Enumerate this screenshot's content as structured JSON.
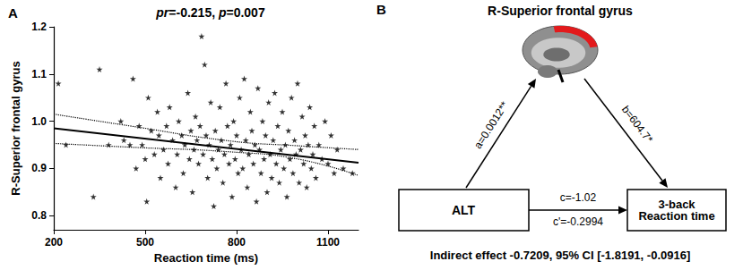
{
  "chart_data": {
    "type": "scatter",
    "panel_label": "A",
    "title": "pr=-0.215, p=0.007",
    "x_label": "Reaction time (ms)",
    "y_label": "R-Superior frontal gyrus",
    "xlim": [
      200,
      1200
    ],
    "xticks": [
      200,
      500,
      800,
      1100
    ],
    "ylim": [
      0.77,
      1.2
    ],
    "yticks": [
      0.8,
      0.9,
      {
        "value": 1.0,
        "label": "1.0"
      },
      1.1,
      1.2
    ],
    "grid": false,
    "series": [
      {
        "type": "scatter",
        "marker": "star",
        "color": "#000000",
        "x": [
          215,
          240,
          330,
          350,
          380,
          420,
          430,
          450,
          460,
          470,
          480,
          490,
          500,
          505,
          510,
          520,
          530,
          540,
          545,
          550,
          560,
          570,
          575,
          580,
          590,
          600,
          605,
          610,
          620,
          625,
          630,
          640,
          645,
          650,
          655,
          660,
          665,
          670,
          675,
          680,
          685,
          690,
          695,
          700,
          705,
          710,
          715,
          720,
          725,
          730,
          735,
          740,
          745,
          750,
          755,
          760,
          765,
          770,
          775,
          780,
          785,
          790,
          795,
          800,
          805,
          810,
          815,
          820,
          825,
          830,
          835,
          840,
          845,
          850,
          855,
          860,
          865,
          870,
          875,
          880,
          885,
          890,
          895,
          900,
          905,
          910,
          915,
          920,
          925,
          930,
          935,
          940,
          945,
          950,
          955,
          960,
          965,
          970,
          975,
          980,
          985,
          990,
          995,
          1000,
          1005,
          1010,
          1015,
          1020,
          1025,
          1030,
          1035,
          1040,
          1045,
          1050,
          1055,
          1060,
          1070,
          1080,
          1090,
          1100,
          1110,
          1120,
          1130,
          1150,
          1180
        ],
        "values": [
          1.08,
          0.95,
          0.84,
          1.11,
          0.95,
          1.0,
          0.96,
          0.95,
          1.09,
          0.9,
          0.99,
          0.95,
          0.92,
          0.83,
          1.05,
          0.98,
          0.93,
          1.02,
          0.97,
          0.88,
          0.94,
          0.99,
          0.91,
          1.03,
          0.96,
          0.86,
          0.93,
          1.0,
          0.97,
          0.89,
          0.95,
          1.06,
          0.92,
          0.98,
          0.85,
          0.94,
          1.01,
          0.96,
          0.91,
          0.99,
          1.18,
          0.93,
          1.12,
          0.97,
          0.88,
          0.95,
          1.04,
          0.92,
          0.82,
          0.98,
          0.9,
          0.94,
          1.03,
          0.96,
          0.87,
          0.93,
          1.08,
          0.99,
          0.91,
          0.95,
          0.84,
          1.0,
          0.92,
          0.97,
          0.89,
          1.05,
          0.94,
          0.9,
          1.09,
          0.96,
          0.86,
          0.93,
          1.02,
          0.98,
          0.91,
          0.95,
          0.83,
          1.07,
          0.94,
          0.89,
          1.0,
          0.92,
          0.97,
          0.85,
          1.04,
          0.93,
          0.88,
          0.96,
          1.06,
          0.91,
          0.99,
          0.87,
          0.94,
          1.02,
          0.9,
          0.95,
          0.84,
          0.98,
          0.92,
          1.05,
          0.89,
          0.96,
          0.93,
          1.08,
          0.87,
          0.94,
          1.01,
          0.91,
          0.97,
          0.86,
          0.95,
          1.03,
          0.9,
          0.93,
          0.99,
          0.88,
          0.95,
          0.92,
          1.0,
          0.91,
          0.97,
          0.89,
          0.94,
          0.9,
          0.89
        ]
      },
      {
        "type": "line",
        "line_style": "solid",
        "color": "#000000",
        "x": [
          200,
          1200
        ],
        "values": [
          0.985,
          0.912
        ]
      },
      {
        "type": "line",
        "line_style": "dotted",
        "color": "#000000",
        "x": [
          200,
          450,
          780,
          1000,
          1200
        ],
        "values": [
          1.015,
          0.99,
          0.958,
          0.948,
          0.94
        ]
      },
      {
        "type": "line",
        "line_style": "dotted",
        "color": "#000000",
        "x": [
          200,
          450,
          780,
          1000,
          1200
        ],
        "values": [
          0.953,
          0.945,
          0.935,
          0.92,
          0.885
        ]
      }
    ]
  },
  "diagram": {
    "panel_label": "B",
    "title": "R-Superior frontal gyrus",
    "x_node": "ALT",
    "y_node": [
      "3-back",
      "Reaction time"
    ],
    "paths": {
      "a": "a=0.0012**",
      "b": "b=604.7*",
      "c": "c=-1.02",
      "c_prime": "c'=-0.2994"
    },
    "footer": "Indirect effect -0.7209, 95% CI [-1.8191, -0.0916]",
    "highlight_color": "#e31a1c"
  }
}
